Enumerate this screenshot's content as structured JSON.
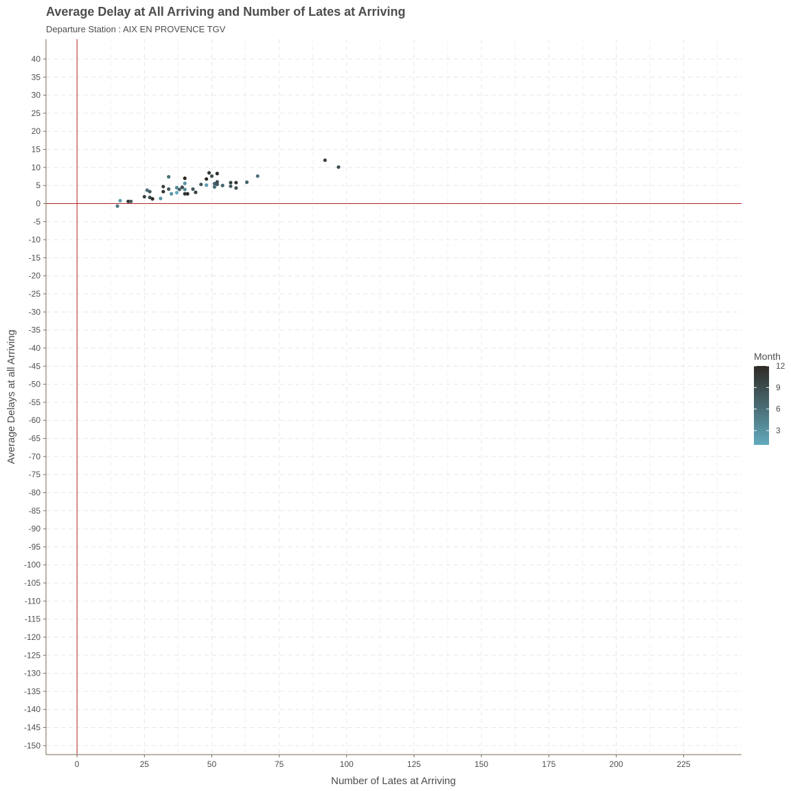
{
  "chart_data": {
    "type": "scatter",
    "title": "Average Delay at All Arriving and Number of Lates at Arriving",
    "subtitle": "Departure Station : AIX EN PROVENCE TGV",
    "xlabel": "Number of Lates at Arriving",
    "ylabel": "Average Delays at all Arriving",
    "xlim": [
      -11.5,
      246.5
    ],
    "ylim": [
      -152.5,
      45.5
    ],
    "x_ticks": [
      "0",
      "25",
      "50",
      "75",
      "100",
      "125",
      "150",
      "175",
      "200",
      "225"
    ],
    "y_ticks": [
      "40",
      "35",
      "30",
      "25",
      "20",
      "15",
      "10",
      "5",
      "0",
      "-5",
      "-10",
      "-15",
      "-20",
      "-25",
      "-30",
      "-35",
      "-40",
      "-45",
      "-50",
      "-55",
      "-60",
      "-65",
      "-70",
      "-75",
      "-80",
      "-85",
      "-90",
      "-95",
      "-100",
      "-105",
      "-110",
      "-115",
      "-120",
      "-125",
      "-130",
      "-135",
      "-140",
      "-145",
      "-150"
    ],
    "reference_lines": {
      "x": 0,
      "y": 0,
      "color": "#b22222"
    },
    "grid": true,
    "legend": {
      "title": "Month",
      "placement": "right",
      "labels": [
        "12",
        "9",
        "6",
        "3"
      ],
      "colors": {
        "low": "#62aabd",
        "high": "#2f2a26"
      }
    },
    "points": [
      {
        "x": 15,
        "y": -0.7,
        "month": 5
      },
      {
        "x": 16,
        "y": 0.8,
        "month": 2
      },
      {
        "x": 19,
        "y": 0.6,
        "month": 11
      },
      {
        "x": 20,
        "y": 0.6,
        "month": 8
      },
      {
        "x": 25,
        "y": 1.9,
        "month": 10
      },
      {
        "x": 26,
        "y": 3.7,
        "month": 6
      },
      {
        "x": 27,
        "y": 1.7,
        "month": 9
      },
      {
        "x": 27,
        "y": 3.3,
        "month": 8
      },
      {
        "x": 28,
        "y": 1.3,
        "month": 12
      },
      {
        "x": 31,
        "y": 1.4,
        "month": 3
      },
      {
        "x": 32,
        "y": 3.3,
        "month": 11
      },
      {
        "x": 32,
        "y": 4.7,
        "month": 10
      },
      {
        "x": 34,
        "y": 7.4,
        "month": 6
      },
      {
        "x": 34,
        "y": 4.0,
        "month": 8
      },
      {
        "x": 35,
        "y": 2.7,
        "month": 3
      },
      {
        "x": 37,
        "y": 4.4,
        "month": 4
      },
      {
        "x": 37,
        "y": 3.0,
        "month": 1
      },
      {
        "x": 38,
        "y": 3.9,
        "month": 7
      },
      {
        "x": 39,
        "y": 4.5,
        "month": 9
      },
      {
        "x": 40,
        "y": 5.6,
        "month": 3
      },
      {
        "x": 40,
        "y": 3.9,
        "month": 4
      },
      {
        "x": 40,
        "y": 7.0,
        "month": 12
      },
      {
        "x": 40,
        "y": 2.7,
        "month": 11
      },
      {
        "x": 41,
        "y": 2.7,
        "month": 12
      },
      {
        "x": 43,
        "y": 4.0,
        "month": 8
      },
      {
        "x": 44,
        "y": 3.1,
        "month": 10
      },
      {
        "x": 46,
        "y": 5.3,
        "month": 8
      },
      {
        "x": 48,
        "y": 5.1,
        "month": 2
      },
      {
        "x": 48,
        "y": 6.8,
        "month": 12
      },
      {
        "x": 49,
        "y": 8.5,
        "month": 11
      },
      {
        "x": 50,
        "y": 7.6,
        "month": 9
      },
      {
        "x": 51,
        "y": 5.5,
        "month": 7
      },
      {
        "x": 51,
        "y": 4.6,
        "month": 6
      },
      {
        "x": 52,
        "y": 5.3,
        "month": 8
      },
      {
        "x": 52,
        "y": 8.3,
        "month": 12
      },
      {
        "x": 52,
        "y": 6.0,
        "month": 9
      },
      {
        "x": 54,
        "y": 5.0,
        "month": 7
      },
      {
        "x": 57,
        "y": 5.8,
        "month": 10
      },
      {
        "x": 57,
        "y": 4.8,
        "month": 8
      },
      {
        "x": 59,
        "y": 5.8,
        "month": 11
      },
      {
        "x": 59,
        "y": 4.3,
        "month": 9
      },
      {
        "x": 63,
        "y": 5.9,
        "month": 7
      },
      {
        "x": 67,
        "y": 7.6,
        "month": 6
      },
      {
        "x": 92,
        "y": 12.0,
        "month": 10
      },
      {
        "x": 97,
        "y": 10.1,
        "month": 9
      }
    ]
  }
}
